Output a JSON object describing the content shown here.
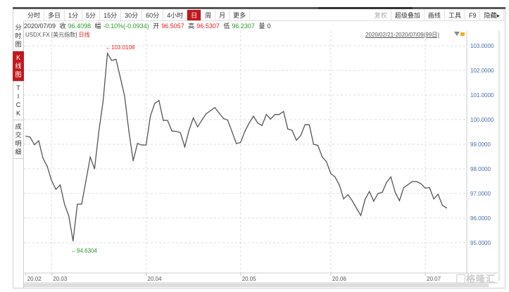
{
  "toolbar": {
    "tabs": [
      "分时",
      "多日",
      "1分",
      "5分",
      "15分",
      "30分",
      "60分",
      "4小时",
      "日",
      "周",
      "月",
      "更多"
    ],
    "active": "日",
    "right": [
      "复权",
      "超级叠加",
      "画线",
      "工具",
      "F9",
      "隐藏▸"
    ]
  },
  "info": {
    "date": "2020/07/09",
    "close_label": "收",
    "close": "96.4098",
    "change_label": "幅",
    "change": "-0.10%(-0.0934)",
    "open_label": "开",
    "open": "96.5057",
    "high_label": "高",
    "high": "96.5307",
    "low_label": "低",
    "low": "96.2307",
    "volume_label": "量",
    "volume": "0"
  },
  "symbol": {
    "code": "USDX.FX",
    "name": "[美元指数]",
    "period": "日线"
  },
  "range": "2020/02/21-2020/07/09(99日)",
  "sidebar": [
    {
      "label": "分\n时\n图"
    },
    {
      "label": "K\n线\n图"
    },
    {
      "label": "T\nI\nC\nK"
    },
    {
      "label": "成\n交\n明\n细"
    }
  ],
  "sidebar_active": 1,
  "watermark": "格隆汇",
  "colors": {
    "line": "#555555",
    "up": "#e02020",
    "down": "#2a9b2a",
    "active": "#c0191c",
    "axis_text": "#4a6fa5"
  },
  "chart_data": {
    "type": "line",
    "ylim": [
      95,
      103
    ],
    "yticks": [
      "103.0000",
      "102.0000",
      "101.0000",
      "100.0000",
      "99.0000",
      "98.0000",
      "97.0000",
      "96.0000",
      "95.0000"
    ],
    "xticks": [
      {
        "label": "20.02",
        "index": 0
      },
      {
        "label": "20.03",
        "index": 6
      },
      {
        "label": "20.04",
        "index": 28
      },
      {
        "label": "20.05",
        "index": 50
      },
      {
        "label": "20.06",
        "index": 71
      },
      {
        "label": "20.07",
        "index": 93
      }
    ],
    "grid": true,
    "annotations": {
      "max": "103.0108",
      "min": "94.6304"
    },
    "values": [
      99.33,
      99.29,
      98.98,
      99.14,
      98.43,
      98.09,
      97.52,
      97.17,
      97.35,
      96.57,
      96.09,
      95.07,
      96.57,
      96.57,
      97.52,
      98.48,
      98.0,
      99.52,
      100.76,
      102.69,
      102.4,
      102.45,
      101.71,
      100.95,
      99.52,
      98.33,
      99.03,
      98.97,
      98.97,
      100.14,
      100.65,
      100.78,
      99.97,
      99.97,
      99.54,
      99.52,
      99.47,
      98.89,
      99.57,
      100.07,
      99.71,
      99.98,
      100.24,
      100.36,
      100.49,
      100.27,
      100.05,
      99.98,
      99.52,
      99.03,
      99.07,
      99.52,
      99.86,
      100.14,
      99.86,
      99.76,
      100.21,
      100.02,
      100.21,
      100.21,
      100.33,
      99.62,
      99.57,
      99.16,
      99.35,
      99.79,
      99.79,
      99.0,
      98.95,
      98.49,
      98.29,
      97.81,
      97.67,
      97.35,
      96.78,
      96.95,
      96.71,
      96.4,
      96.11,
      96.76,
      97.08,
      96.69,
      97.0,
      97.05,
      97.45,
      97.67,
      97.05,
      96.71,
      97.24,
      97.36,
      97.49,
      97.48,
      97.4,
      97.22,
      97.24,
      96.78,
      96.97,
      96.52,
      96.41
    ]
  }
}
